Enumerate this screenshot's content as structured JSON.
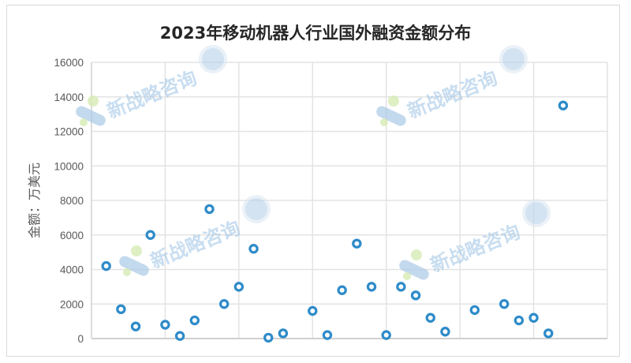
{
  "chart_data": {
    "type": "scatter",
    "title": "2023年移动机器人行业国外融资金额分布",
    "xlabel": "",
    "ylabel": "金额：万美元",
    "xlim": [
      0,
      35
    ],
    "ylim": [
      0,
      16000
    ],
    "yticks": [
      "0",
      "2000",
      "4000",
      "6000",
      "8000",
      "10000",
      "12000",
      "14000",
      "16000"
    ],
    "x_grid_step": 5,
    "grid": true,
    "x_tick_labels_shown": false,
    "marker_color": "#2e8bc9",
    "points": [
      [
        1,
        4200
      ],
      [
        2,
        1700
      ],
      [
        3,
        700
      ],
      [
        4,
        6000
      ],
      [
        5,
        800
      ],
      [
        6,
        150
      ],
      [
        7,
        1050
      ],
      [
        8,
        7500
      ],
      [
        9,
        2000
      ],
      [
        10,
        3000
      ],
      [
        11,
        5200
      ],
      [
        12,
        50
      ],
      [
        13,
        300
      ],
      [
        15,
        1600
      ],
      [
        16,
        200
      ],
      [
        17,
        2800
      ],
      [
        18,
        5500
      ],
      [
        19,
        3000
      ],
      [
        20,
        200
      ],
      [
        21,
        3000
      ],
      [
        22,
        2500
      ],
      [
        23,
        1200
      ],
      [
        24,
        400
      ],
      [
        26,
        1650
      ],
      [
        28,
        2000
      ],
      [
        29,
        1050
      ],
      [
        30,
        1200
      ],
      [
        31,
        300
      ],
      [
        32,
        13500
      ]
    ]
  },
  "watermark": {
    "text": "新战略咨询",
    "logo": "CMR"
  }
}
